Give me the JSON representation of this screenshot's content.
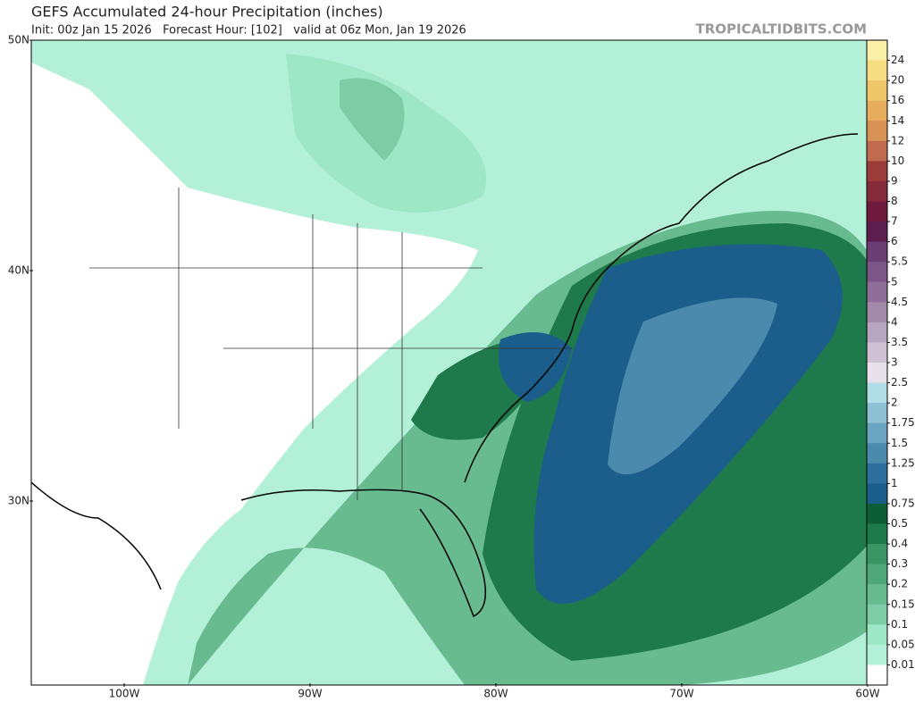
{
  "header": {
    "title": "GEFS Accumulated 24-hour Precipitation (inches)",
    "subtitle": "Init: 00z Jan 15 2026   Forecast Hour: [102]   valid at 06z Mon, Jan 19 2026",
    "site": "TROPICALTIDBITS.COM"
  },
  "map": {
    "lat_labels": [
      "50N",
      "40N",
      "30N"
    ],
    "lon_labels": [
      "100W",
      "90W",
      "80W",
      "70W",
      "60W"
    ]
  },
  "colorbar": {
    "labels": [
      24,
      20,
      16,
      14,
      12,
      10,
      9,
      8,
      7,
      6,
      5.5,
      5,
      4.5,
      4,
      3.5,
      3,
      2.5,
      2,
      1.75,
      1.5,
      1.25,
      1,
      0.75,
      0.5,
      0.4,
      0.3,
      0.2,
      0.15,
      0.1,
      0.05,
      0.01
    ],
    "colors": [
      "#fbf0a8",
      "#f7dd82",
      "#efc66a",
      "#e5ad5c",
      "#d89256",
      "#c06a4f",
      "#9b3b3a",
      "#852a3a",
      "#6e1a3d",
      "#5c1d4f",
      "#6b3e74",
      "#7b5686",
      "#8f6f99",
      "#a38aab",
      "#b8a5bf",
      "#cfc0d3",
      "#e8e0ea",
      "#b1dde6",
      "#8cc0d2",
      "#6aa4c0",
      "#4b89ad",
      "#2e6f9e",
      "#1b5e8c",
      "#0e5e35",
      "#1e7a4a",
      "#3a9464",
      "#4fa678",
      "#68bb8f",
      "#7dcca6",
      "#9de6c6",
      "#b3f0d8",
      "#ffffff"
    ]
  }
}
